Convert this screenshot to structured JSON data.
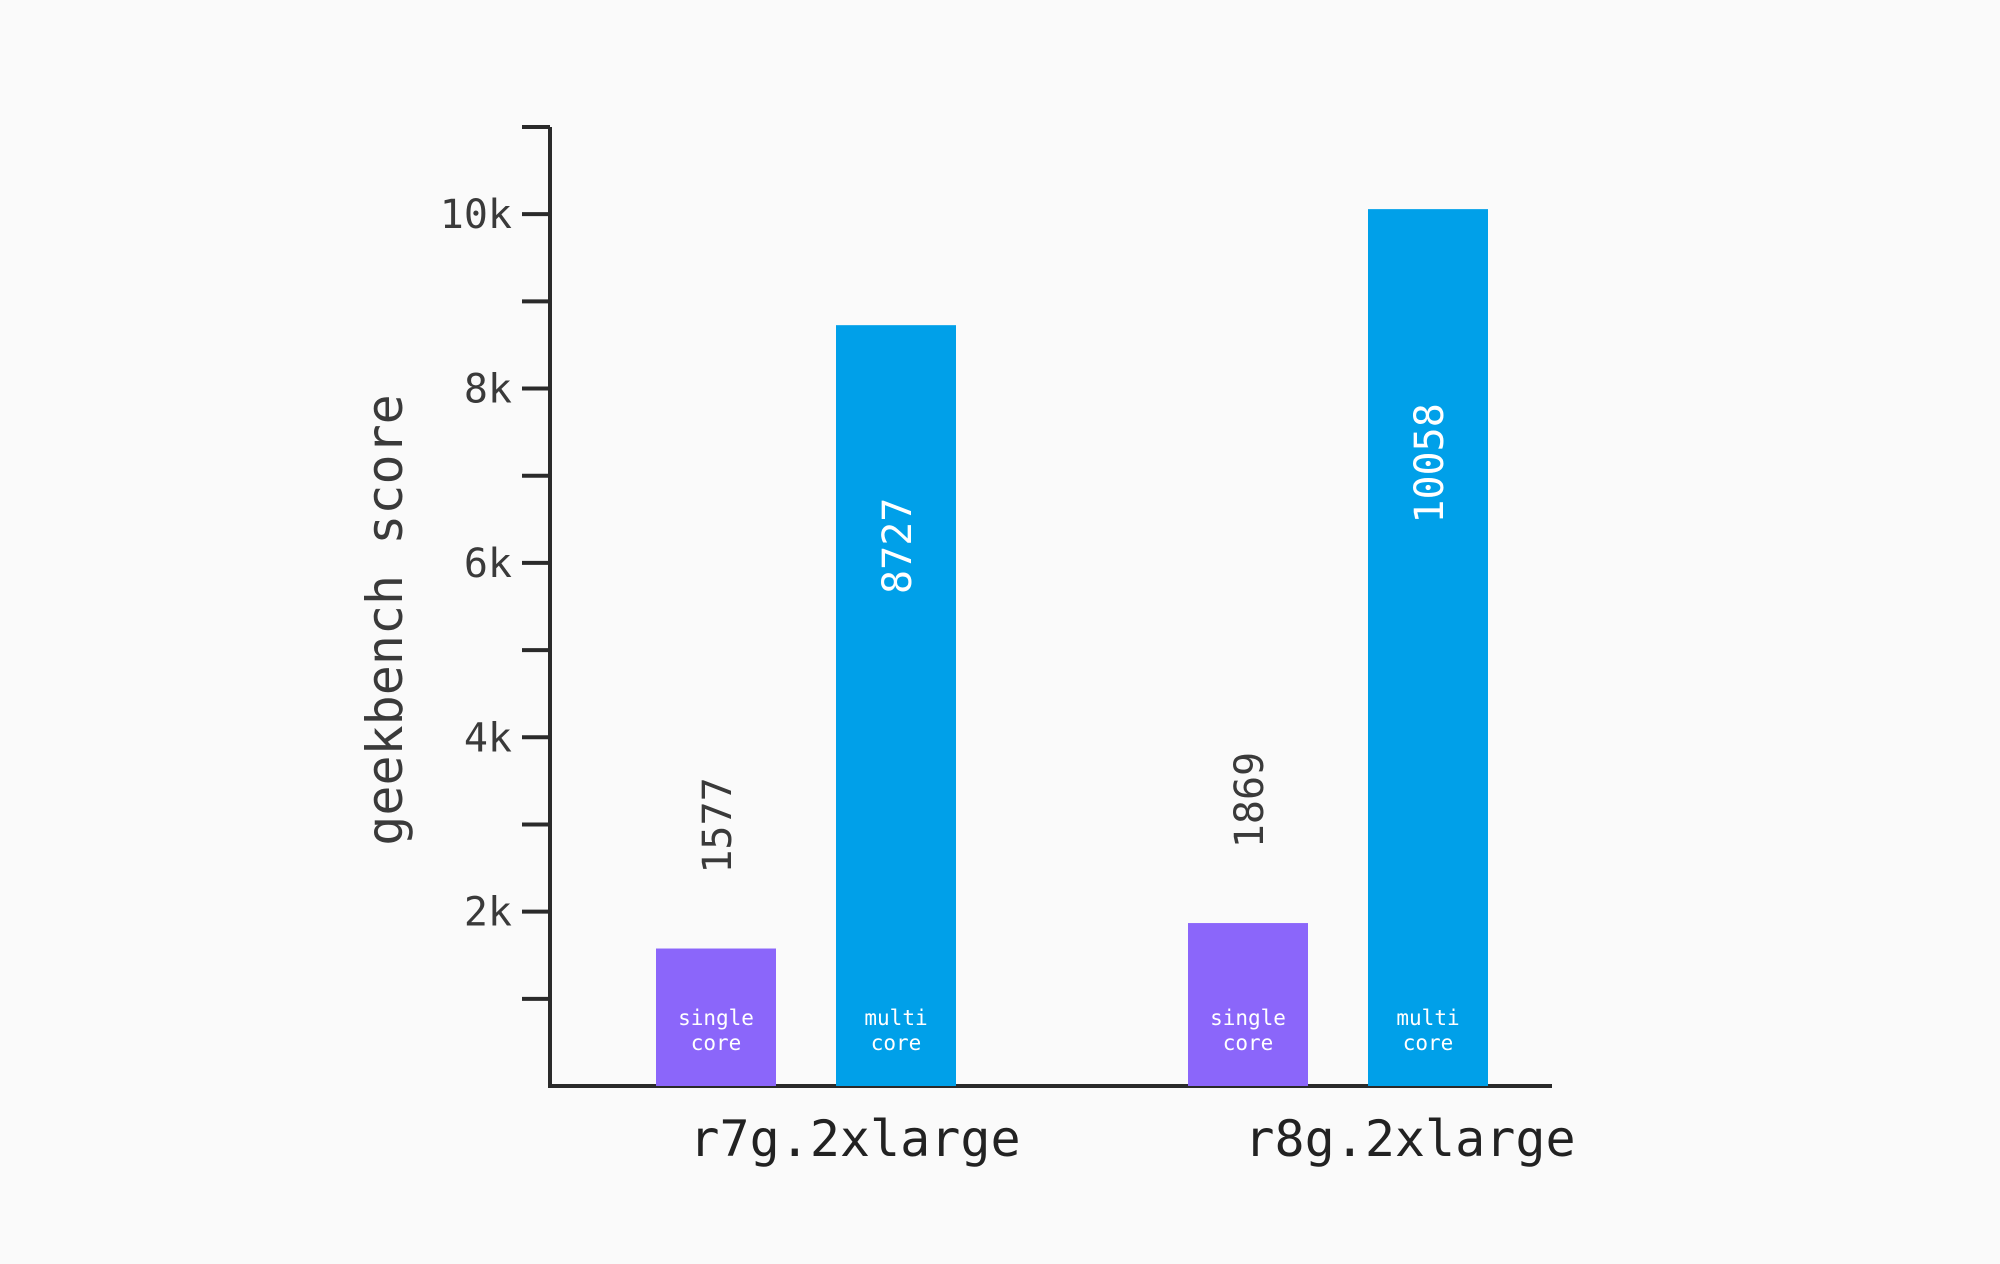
{
  "chart_data": {
    "type": "bar",
    "title": "",
    "xlabel": "",
    "ylabel": "geekbench score",
    "ylim": [
      0,
      11000
    ],
    "yticks": [
      {
        "value": 1000,
        "label": ""
      },
      {
        "value": 2000,
        "label": "2k"
      },
      {
        "value": 3000,
        "label": ""
      },
      {
        "value": 4000,
        "label": "4k"
      },
      {
        "value": 5000,
        "label": ""
      },
      {
        "value": 6000,
        "label": "6k"
      },
      {
        "value": 7000,
        "label": ""
      },
      {
        "value": 8000,
        "label": "8k"
      },
      {
        "value": 9000,
        "label": ""
      },
      {
        "value": 10000,
        "label": "10k"
      },
      {
        "value": 11000,
        "label": ""
      }
    ],
    "grid": false,
    "legend": "none",
    "categories": [
      "r7g.2xlarge",
      "r8g.2xlarge"
    ],
    "series": [
      {
        "bar_text": [
          "single",
          "core"
        ],
        "color": "#8b66fa",
        "values": [
          1577,
          1869
        ],
        "value_labels": [
          "1577",
          "1869"
        ]
      },
      {
        "bar_text": [
          "multi",
          "core"
        ],
        "color": "#00a0e9",
        "values": [
          8727,
          10058
        ],
        "value_labels": [
          "8727",
          "10058"
        ]
      }
    ]
  }
}
